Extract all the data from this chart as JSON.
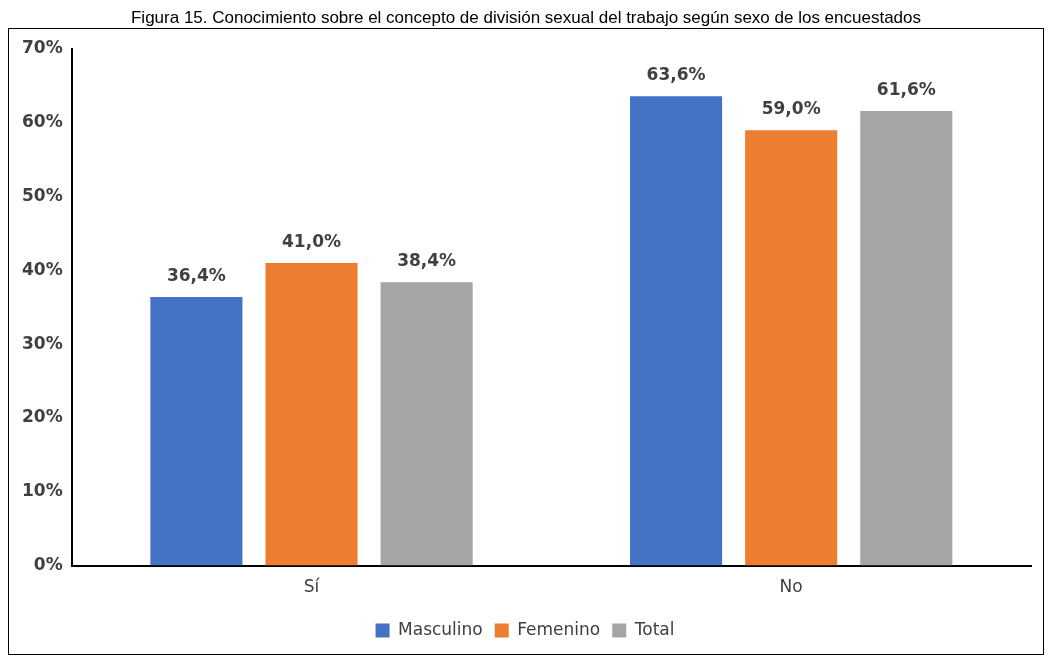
{
  "chart_data": {
    "type": "bar",
    "title": "Figura 15. Conocimiento sobre el concepto de división sexual del trabajo según sexo de los encuestados",
    "categories": [
      "Sí",
      "No"
    ],
    "series": [
      {
        "name": "Masculino",
        "color": "#4472c4",
        "values": [
          36.4,
          63.6
        ],
        "value_labels": [
          "36,4%",
          "63,6%"
        ]
      },
      {
        "name": "Femenino",
        "color": "#ed7d31",
        "values": [
          41.0,
          59.0
        ],
        "value_labels": [
          "41,0%",
          "59,0%"
        ]
      },
      {
        "name": "Total",
        "color": "#a5a5a5",
        "values": [
          38.4,
          61.6
        ],
        "value_labels": [
          "38,4%",
          "61,6%"
        ]
      }
    ],
    "ylim": [
      0,
      70
    ],
    "yticks": [
      {
        "value": 0,
        "label": "0%"
      },
      {
        "value": 10,
        "label": "10%"
      },
      {
        "value": 20,
        "label": "20%"
      },
      {
        "value": 30,
        "label": "30%"
      },
      {
        "value": 40,
        "label": "40%"
      },
      {
        "value": 50,
        "label": "50%"
      },
      {
        "value": 60,
        "label": "60%"
      },
      {
        "value": 70,
        "label": "70%"
      }
    ],
    "grid": false,
    "legend": "bottom"
  }
}
